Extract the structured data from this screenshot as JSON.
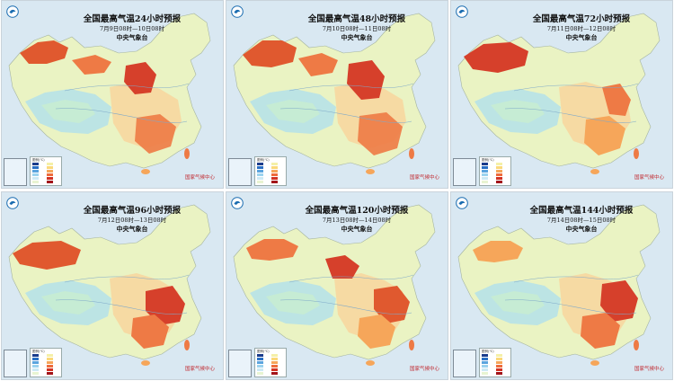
{
  "panels": [
    {
      "title": "全国最高气温24小时预报",
      "period": "7月9日08时—10日08时",
      "agency": "中央气象台",
      "stamp": "国家气候中心",
      "hot_zones": [
        "north-xinjiang",
        "north-china",
        "inner-mongolia-west",
        "south-china"
      ]
    },
    {
      "title": "全国最高气温48小时预报",
      "period": "7月10日08时—11日08时",
      "agency": "中央气象台",
      "stamp": "国家气候中心",
      "hot_zones": [
        "north-xinjiang",
        "north-china",
        "inner-mongolia-west",
        "south-china"
      ]
    },
    {
      "title": "全国最高气温72小时预报",
      "period": "7月11日08时—12日08时",
      "agency": "中央气象台",
      "stamp": "国家气候中心",
      "hot_zones": [
        "north-xinjiang",
        "east-china",
        "south-china"
      ]
    },
    {
      "title": "全国最高气温96小时预报",
      "period": "7月12日08时—13日08时",
      "agency": "中央气象台",
      "stamp": "国家气候中心",
      "hot_zones": [
        "north-xinjiang",
        "east-china",
        "south-china"
      ]
    },
    {
      "title": "全国最高气温120小时预报",
      "period": "7月13日08时—14日08时",
      "agency": "中央气象台",
      "stamp": "国家气候中心",
      "hot_zones": [
        "north-xinjiang",
        "north-china",
        "east-china",
        "south-china"
      ]
    },
    {
      "title": "全国最高气温144小时预报",
      "period": "7月14日08时—15日08时",
      "agency": "中央气象台",
      "stamp": "国家气候中心",
      "hot_zones": [
        "north-xinjiang",
        "east-china",
        "south-china"
      ]
    }
  ],
  "legend": {
    "title": "图例(℃)",
    "colors": [
      "#1b3c8c",
      "#2a6fc4",
      "#5ba4de",
      "#9cd3ef",
      "#cdeaf5",
      "#e8f4d2",
      "#f5f0a8",
      "#fbd97a",
      "#f6a65a",
      "#ee6b3b",
      "#d23224",
      "#a3141a"
    ]
  },
  "colors": {
    "sea": "#d9e8f2",
    "land_cool": "#c6ecd4",
    "land_mild": "#eaf3c3",
    "land_warm": "#f7d7a0",
    "hot": "#ee7a45",
    "very_hot": "#d6402b",
    "plateau": "#b9e3e6"
  }
}
